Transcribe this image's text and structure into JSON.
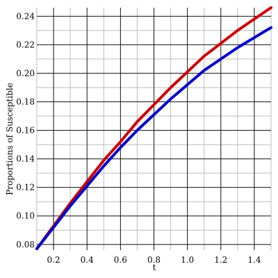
{
  "chart_data": {
    "type": "line",
    "title": "",
    "xlabel": "t",
    "ylabel": "Proportions of Susceptible",
    "xlim": [
      0.1,
      1.5
    ],
    "ylim": [
      0.076,
      0.246
    ],
    "x_ticks": [
      "0.2",
      "0.4",
      "0.6",
      "0.8",
      "1.0",
      "1.2",
      "1.4"
    ],
    "y_ticks": [
      "0.08",
      "0.10",
      "0.12",
      "0.14",
      "0.16",
      "0.18",
      "0.20",
      "0.22",
      "0.24"
    ],
    "grid": true,
    "minor_grid": true,
    "legend": "none",
    "series": [
      {
        "color": "#cc0000",
        "x": [
          0.1,
          0.2,
          0.3,
          0.4,
          0.5,
          0.6,
          0.7,
          0.8,
          0.9,
          1.0,
          1.1,
          1.2,
          1.3,
          1.4,
          1.5
        ],
        "y": [
          0.077,
          0.093,
          0.109,
          0.124,
          0.139,
          0.152,
          0.166,
          0.178,
          0.19,
          0.201,
          0.212,
          0.221,
          0.23,
          0.238,
          0.246
        ]
      },
      {
        "color": "#0000cc",
        "x": [
          0.1,
          0.2,
          0.3,
          0.4,
          0.5,
          0.6,
          0.7,
          0.8,
          0.9,
          1.0,
          1.1,
          1.2,
          1.3,
          1.4,
          1.5
        ],
        "y": [
          0.077,
          0.092,
          0.107,
          0.121,
          0.135,
          0.148,
          0.16,
          0.171,
          0.182,
          0.192,
          0.202,
          0.21,
          0.218,
          0.225,
          0.232
        ]
      }
    ]
  }
}
